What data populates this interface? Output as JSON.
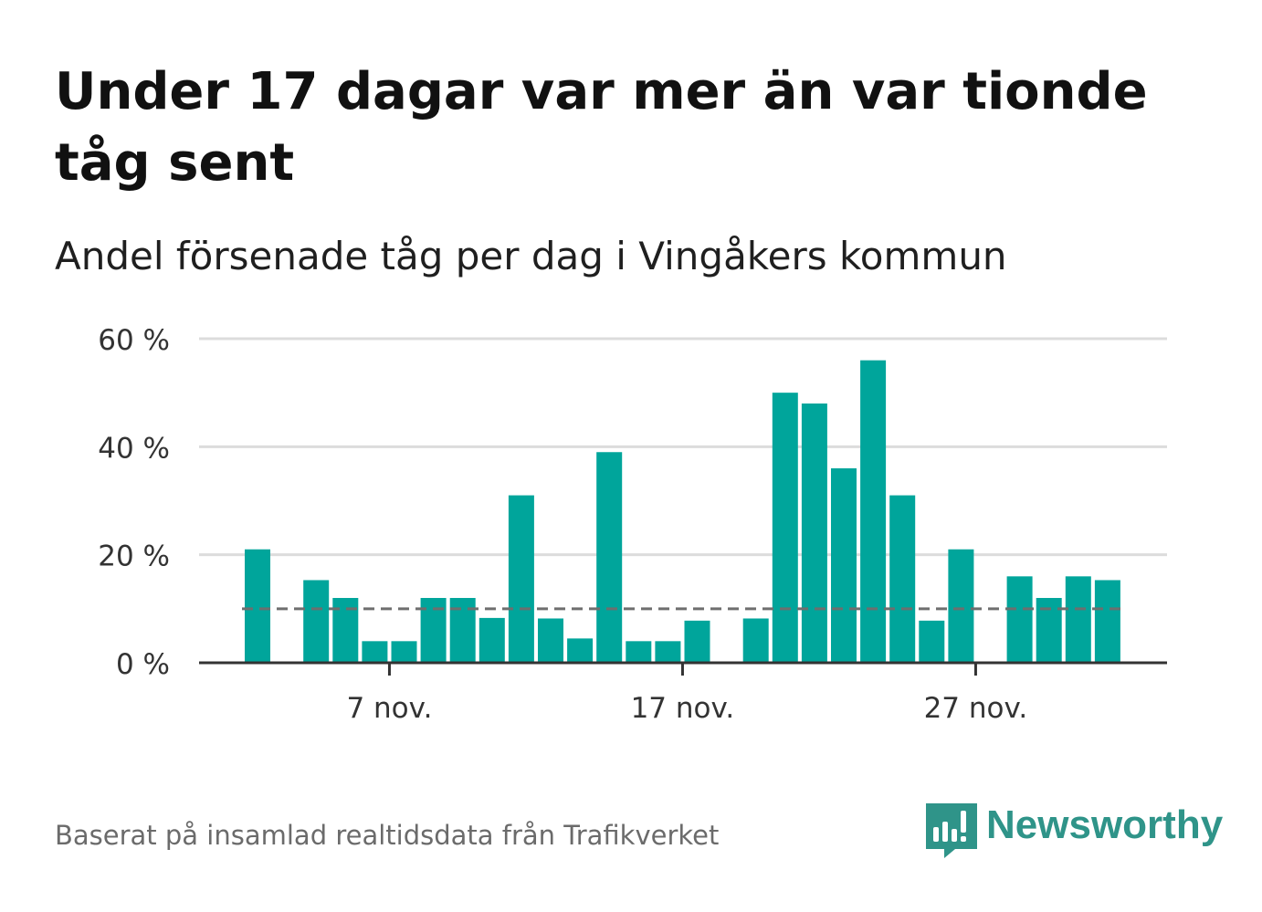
{
  "title": "Under 17 dagar var mer än var tionde tåg sent",
  "subtitle": "Andel försenade tåg per dag i Vingåkers kommun",
  "source": "Baserat på insamlad realtidsdata från Trafikverket",
  "brand": {
    "name": "Newsworthy",
    "icon": "newsworthy-logo-icon",
    "color": "#2f9489"
  },
  "chart_data": {
    "type": "bar",
    "x": [
      "2 nov.",
      "3 nov.",
      "4 nov.",
      "5 nov.",
      "6 nov.",
      "7 nov.",
      "8 nov.",
      "9 nov.",
      "10 nov.",
      "11 nov.",
      "12 nov.",
      "13 nov.",
      "14 nov.",
      "15 nov.",
      "16 nov.",
      "17 nov.",
      "18 nov.",
      "19 nov.",
      "20 nov.",
      "21 nov.",
      "22 nov.",
      "23 nov.",
      "24 nov.",
      "25 nov.",
      "26 nov.",
      "27 nov.",
      "28 nov.",
      "29 nov.",
      "30 nov.",
      "1 dec."
    ],
    "values": [
      21,
      null,
      15.3,
      12,
      4,
      4,
      12,
      12,
      8.3,
      31,
      8.2,
      4.5,
      39,
      4,
      4,
      7.8,
      null,
      8.2,
      50,
      48,
      36,
      56,
      31,
      7.8,
      21,
      null,
      16,
      12,
      16,
      15.3
    ],
    "reference_line": 10,
    "y_ticks": [
      {
        "value": 0,
        "label": "0 %"
      },
      {
        "value": 20,
        "label": "20 %"
      },
      {
        "value": 40,
        "label": "40 %"
      },
      {
        "value": 60,
        "label": "60 %"
      }
    ],
    "x_ticks": [
      {
        "value": "7 nov.",
        "label": "7 nov."
      },
      {
        "value": "17 nov.",
        "label": "17 nov."
      },
      {
        "value": "27 nov.",
        "label": "27 nov."
      }
    ],
    "ylim": [
      0,
      60
    ],
    "grid": true,
    "bar_color": "#00a59b",
    "reference_color": "#6e6e6e"
  }
}
